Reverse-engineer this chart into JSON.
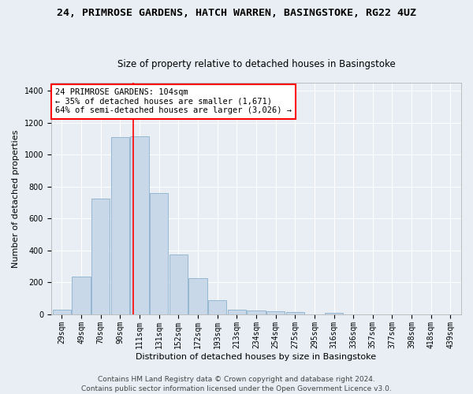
{
  "title1": "24, PRIMROSE GARDENS, HATCH WARREN, BASINGSTOKE, RG22 4UZ",
  "title2": "Size of property relative to detached houses in Basingstoke",
  "xlabel": "Distribution of detached houses by size in Basingstoke",
  "ylabel": "Number of detached properties",
  "bar_labels": [
    "29sqm",
    "49sqm",
    "70sqm",
    "90sqm",
    "111sqm",
    "131sqm",
    "152sqm",
    "172sqm",
    "193sqm",
    "213sqm",
    "234sqm",
    "254sqm",
    "275sqm",
    "295sqm",
    "316sqm",
    "336sqm",
    "357sqm",
    "377sqm",
    "398sqm",
    "418sqm",
    "439sqm"
  ],
  "bar_values": [
    30,
    235,
    725,
    1110,
    1115,
    760,
    375,
    225,
    90,
    30,
    25,
    22,
    15,
    0,
    12,
    0,
    0,
    0,
    0,
    0,
    0
  ],
  "bar_color": "#c8d8e8",
  "bar_edgecolor": "#8ab0cc",
  "ylim": [
    0,
    1450
  ],
  "yticks": [
    0,
    200,
    400,
    600,
    800,
    1000,
    1200,
    1400
  ],
  "annotation_line1": "24 PRIMROSE GARDENS: 104sqm",
  "annotation_line2": "← 35% of detached houses are smaller (1,671)",
  "annotation_line3": "64% of semi-detached houses are larger (3,026) →",
  "annotation_boxcolor": "white",
  "annotation_edgecolor": "red",
  "footer1": "Contains HM Land Registry data © Crown copyright and database right 2024.",
  "footer2": "Contains public sector information licensed under the Open Government Licence v3.0.",
  "background_color": "#e8eef4",
  "grid_color": "white",
  "vline_color": "red",
  "vline_index": 3.67,
  "title1_fontsize": 9.5,
  "title2_fontsize": 8.5,
  "xlabel_fontsize": 8,
  "ylabel_fontsize": 8,
  "tick_fontsize": 7,
  "annotation_fontsize": 7.5,
  "footer_fontsize": 6.5
}
